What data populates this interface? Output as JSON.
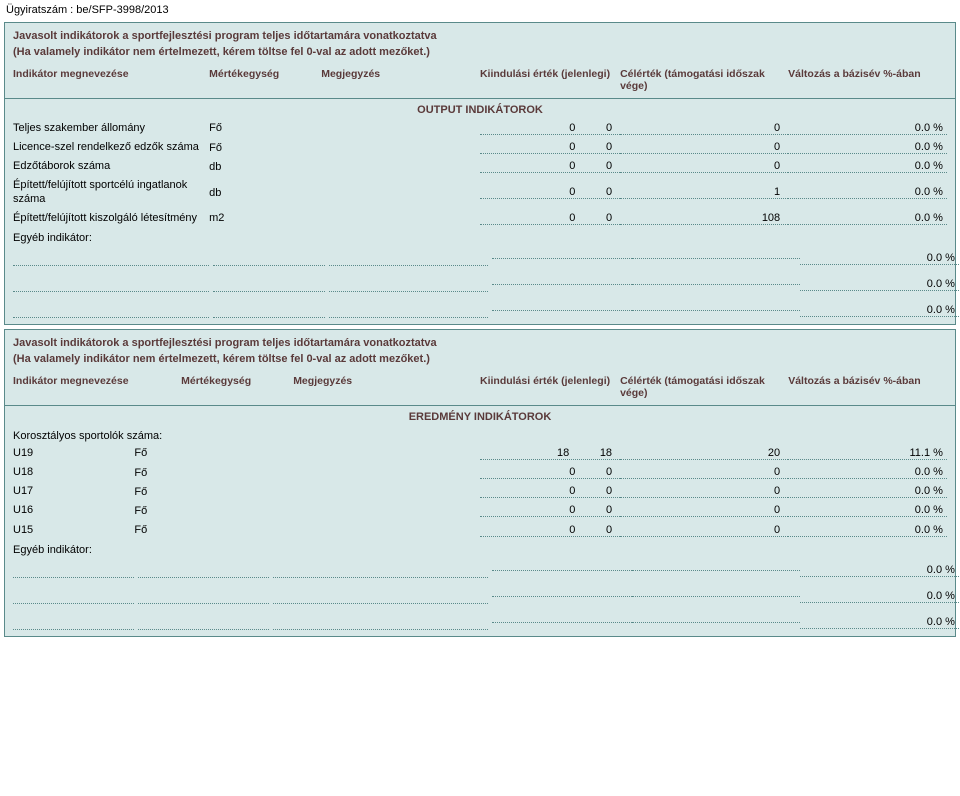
{
  "doc_id": "Ügyiratszám : be/SFP-3998/2013",
  "section1": {
    "title": "Javasolt indikátorok a sportfejlesztési program teljes időtartamára vonatkoztatva",
    "subtitle": "(Ha valamely indikátor nem értelmezett, kérem töltse fel 0-val az adott mezőket.)",
    "headers": {
      "name": "Indikátor megnevezése",
      "unit": "Mértékegység",
      "note": "Megjegyzés",
      "start": "Kiindulási érték (jelenlegi)",
      "target": "Célérték (támogatási időszak vége)",
      "change": "Változás a bázisév %-ában"
    },
    "heading": "OUTPUT INDIKÁTOROK",
    "rows": [
      {
        "name": "Teljes szakember állomány",
        "unit": "Fő",
        "start": "0",
        "target": "0",
        "final": "0",
        "change": "0.0  %"
      },
      {
        "name": "Licence-szel rendelkező edzők száma",
        "unit": "Fő",
        "start": "0",
        "target": "0",
        "final": "0",
        "change": "0.0  %"
      },
      {
        "name": "Edzőtáborok száma",
        "unit": "db",
        "start": "0",
        "target": "0",
        "final": "0",
        "change": "0.0  %"
      },
      {
        "name": "Épített/felújított sportcélú ingatlanok száma",
        "unit": "db",
        "start": "0",
        "target": "0",
        "final": "1",
        "change": "0.0  %"
      },
      {
        "name": "Épített/felújított kiszolgáló létesítmény",
        "unit": "m2",
        "start": "0",
        "target": "0",
        "final": "108",
        "change": "0.0  %"
      }
    ],
    "other_label": "Egyéb indikátor:",
    "blank_rows": [
      {
        "change": "0.0  %"
      },
      {
        "change": "0.0  %"
      },
      {
        "change": "0.0  %"
      }
    ]
  },
  "section2": {
    "title": "Javasolt indikátorok a sportfejlesztési program teljes időtartamára vonatkoztatva",
    "subtitle": "(Ha valamely indikátor nem értelmezett, kérem töltse fel 0-val az adott mezőket.)",
    "headers": {
      "name": "Indikátor megnevezése",
      "unit": "Mértékegység",
      "note": "Megjegyzés",
      "start": "Kiindulási érték (jelenlegi)",
      "target": "Célérték (támogatási időszak vége)",
      "change": "Változás a bázisév %-ában"
    },
    "heading": "EREDMÉNY INDIKÁTOROK",
    "age_label": "Korosztályos sportolók száma:",
    "rows": [
      {
        "name": "U19",
        "unit": "Fő",
        "start": "18",
        "target": "18",
        "final": "20",
        "change": "11.1  %"
      },
      {
        "name": "U18",
        "unit": "Fő",
        "start": "0",
        "target": "0",
        "final": "0",
        "change": "0.0  %"
      },
      {
        "name": "U17",
        "unit": "Fő",
        "start": "0",
        "target": "0",
        "final": "0",
        "change": "0.0  %"
      },
      {
        "name": "U16",
        "unit": "Fő",
        "start": "0",
        "target": "0",
        "final": "0",
        "change": "0.0  %"
      },
      {
        "name": "U15",
        "unit": "Fő",
        "start": "0",
        "target": "0",
        "final": "0",
        "change": "0.0  %"
      }
    ],
    "other_label": "Egyéb indikátor:",
    "blank_rows": [
      {
        "change": "0.0  %"
      },
      {
        "change": "0.0  %"
      },
      {
        "change": "0.0  %"
      }
    ]
  }
}
